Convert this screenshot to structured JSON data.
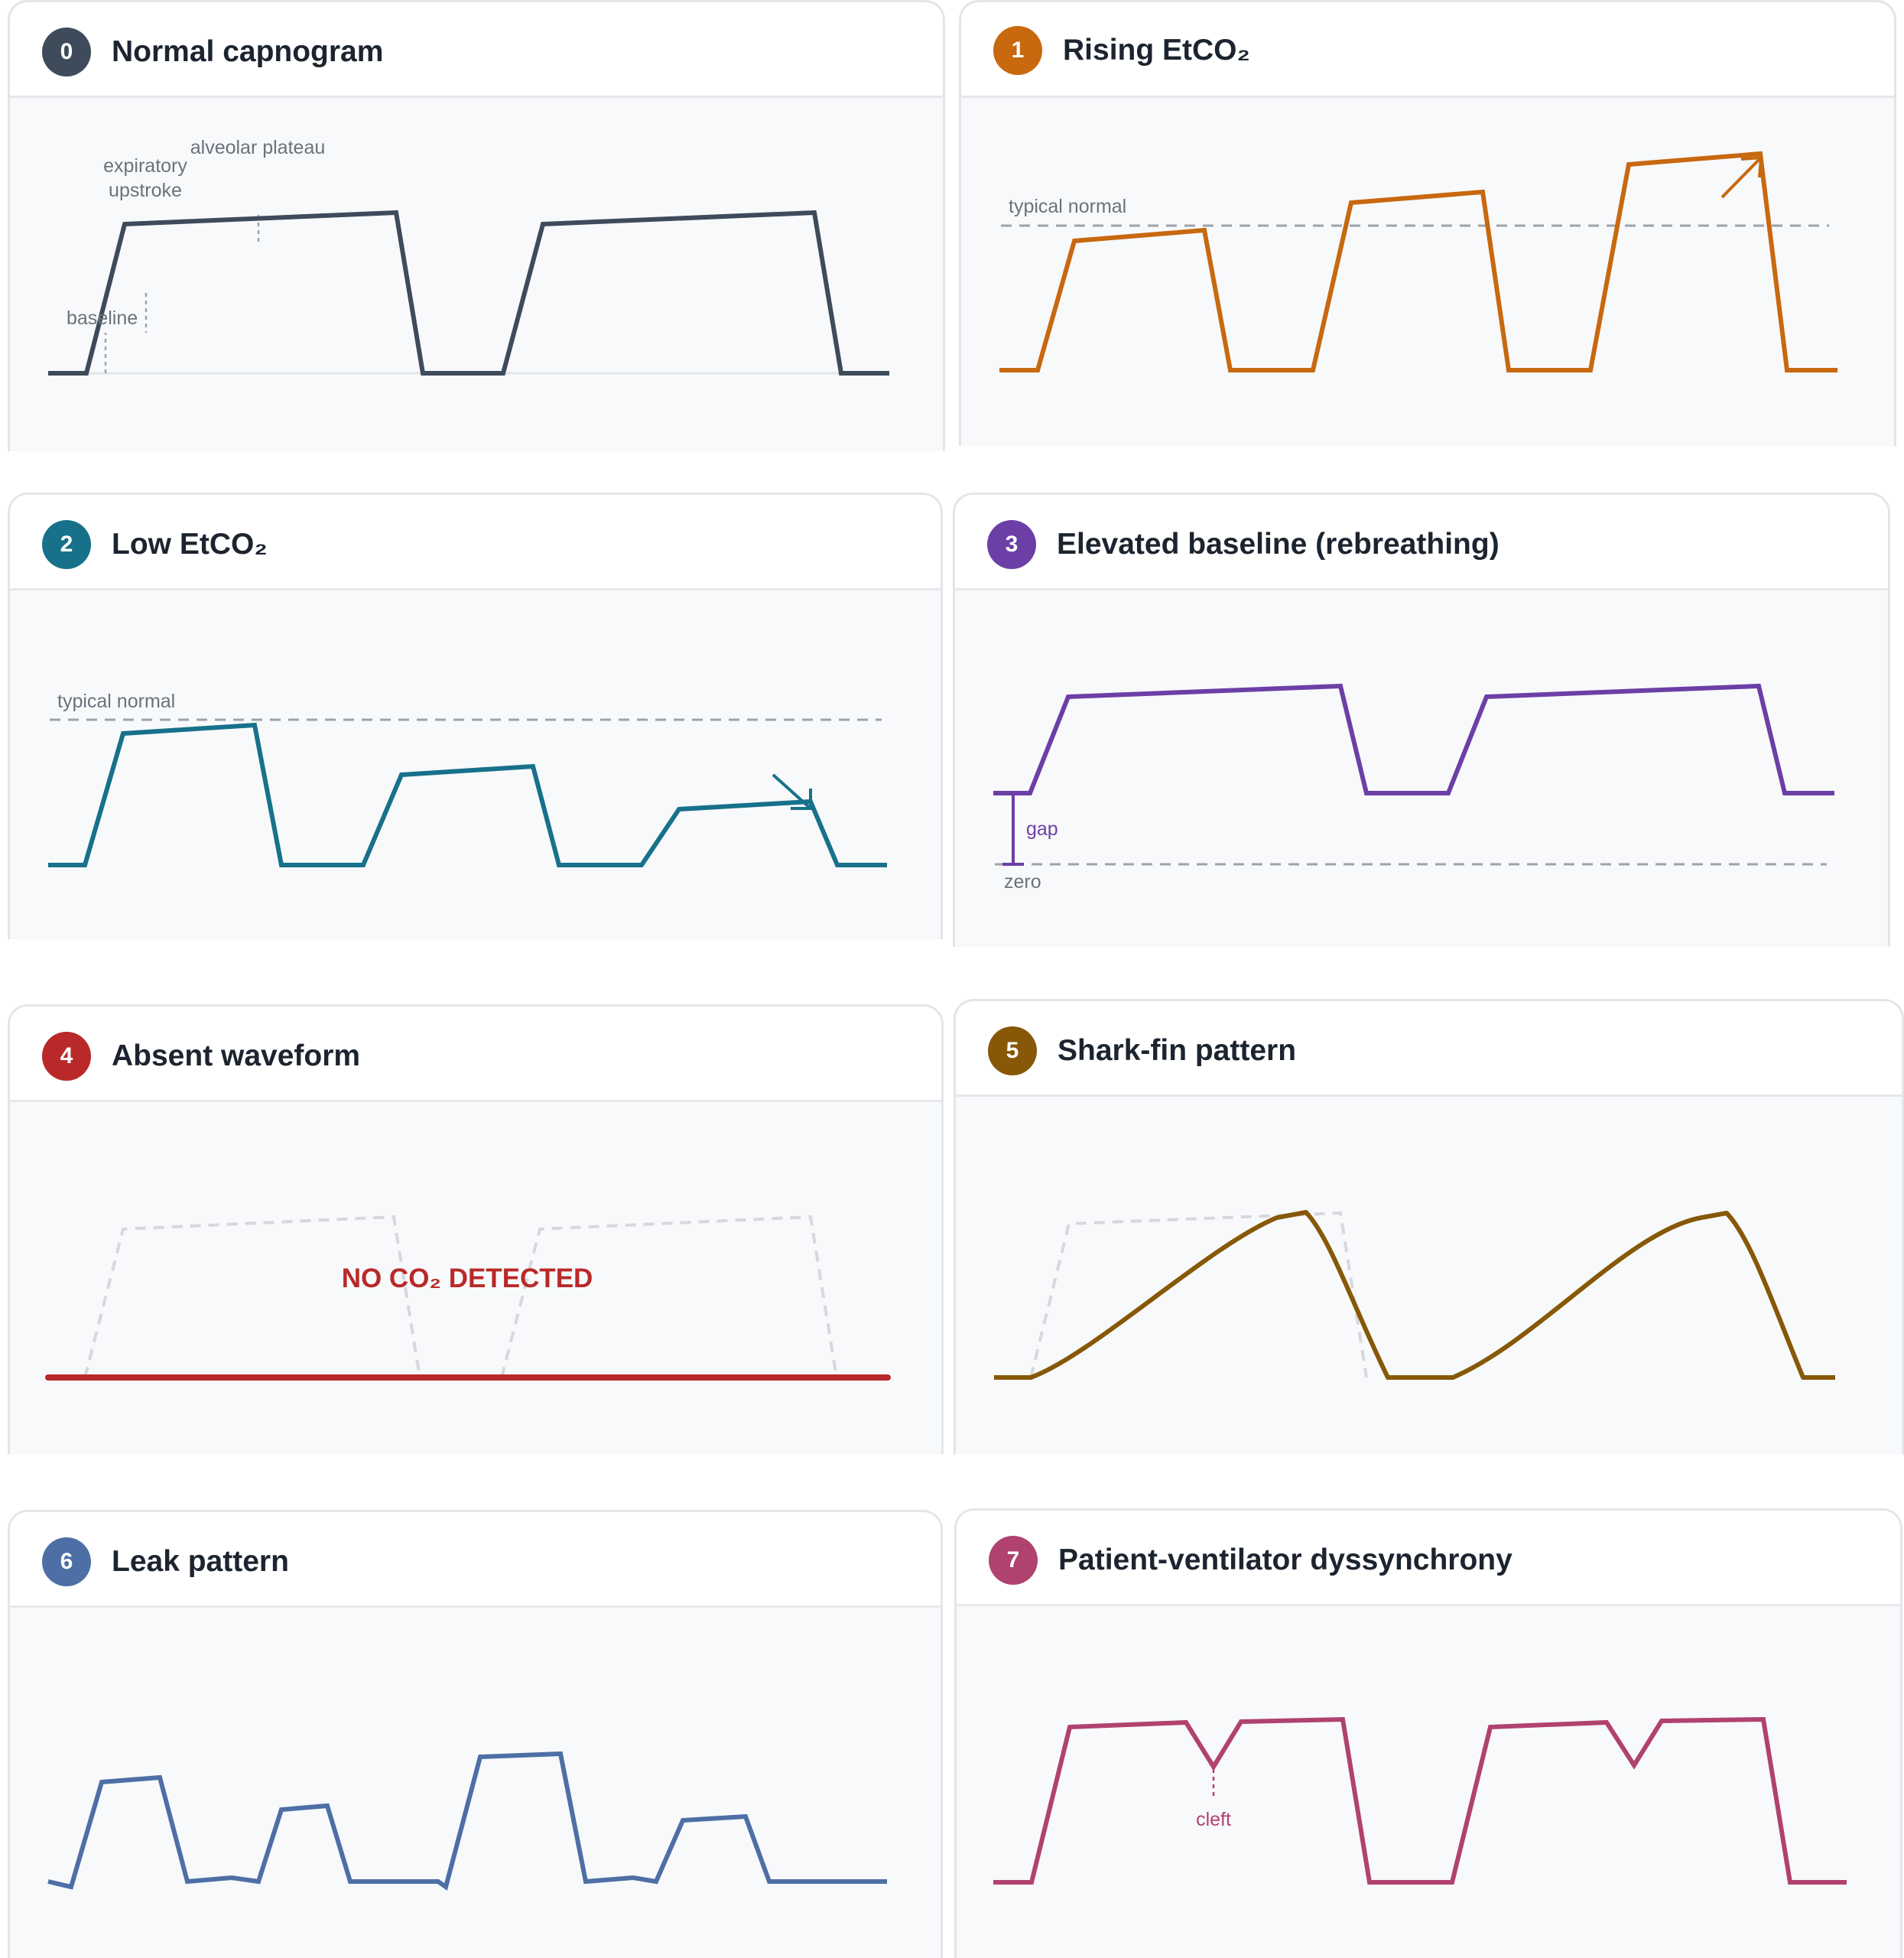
{
  "colors": {
    "normal": "#3d4b5a",
    "rising": "#c8680f",
    "low": "#17718a",
    "rebreathing": "#6c3fa6",
    "absent": "#b92929",
    "sharkfin": "#875808",
    "leak": "#4d6fa5",
    "dyssynchrony": "#b0426f",
    "reference": "#9ea3aa",
    "annotation": "#6a727c"
  },
  "panels": [
    {
      "badge": "0",
      "title": "Normal capnogram",
      "color_key": "normal",
      "annotations": {
        "expiratory_line1": "expiratory",
        "expiratory_line2": "upstroke",
        "plateau": "alveolar plateau",
        "baseline": "baseline"
      }
    },
    {
      "badge": "1",
      "title": "Rising EtCO₂",
      "color_key": "rising",
      "annotations": {
        "reference": "typical normal"
      }
    },
    {
      "badge": "2",
      "title": "Low EtCO₂",
      "color_key": "low",
      "annotations": {
        "reference": "typical normal"
      }
    },
    {
      "badge": "3",
      "title": "Elevated baseline (rebreathing)",
      "color_key": "rebreathing",
      "annotations": {
        "gap": "gap",
        "zero": "zero"
      }
    },
    {
      "badge": "4",
      "title": "Absent waveform",
      "color_key": "absent",
      "annotations": {
        "message": "NO CO₂ DETECTED"
      }
    },
    {
      "badge": "5",
      "title": "Shark-fin pattern",
      "color_key": "sharkfin",
      "annotations": {}
    },
    {
      "badge": "6",
      "title": "Leak pattern",
      "color_key": "leak",
      "annotations": {}
    },
    {
      "badge": "7",
      "title": "Patient-ventilator dyssynchrony",
      "color_key": "dyssynchrony",
      "annotations": {
        "cleft": "cleft"
      }
    }
  ]
}
